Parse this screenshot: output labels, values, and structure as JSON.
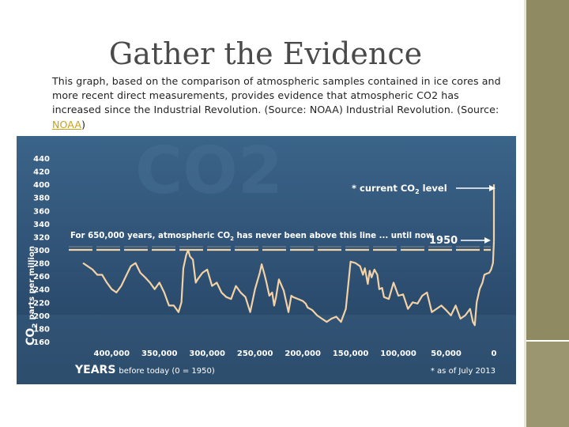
{
  "slide": {
    "title": "Gather the Evidence",
    "description_text": "This graph, based on the comparison of atmospheric samples contained in ice cores and more recent direct measurements, provides evidence that atmospheric CO2 has increased since the Industrial Revolution. (Source: NOAA) Industrial Revolution. (Source: ",
    "source_link": "NOAA",
    "description_end": ")"
  },
  "colors": {
    "chart_bg": "#2f5274",
    "line": "#f2d2a6",
    "text": "#ffffff",
    "sidebar": "#8f8a62"
  },
  "chart_data": {
    "type": "line",
    "watermark": "CO2",
    "ylabel_main": "CO",
    "ylabel_sub": "2",
    "ylabel_rest": "parts per million",
    "xlabel_main": "YEARS",
    "xlabel_rest": "before today (0 = 1950)",
    "ylim": [
      160,
      440
    ],
    "y_ticks": [
      160,
      180,
      200,
      220,
      240,
      260,
      280,
      300,
      320,
      340,
      360,
      380,
      400,
      420,
      440
    ],
    "xlim": [
      430000,
      0
    ],
    "x_ticks": [
      400000,
      350000,
      300000,
      250000,
      200000,
      150000,
      100000,
      50000,
      0
    ],
    "x_tick_labels": [
      "400,000",
      "350,000",
      "300,000",
      "250,000",
      "200,000",
      "150,000",
      "100,000",
      "50,000",
      "0"
    ],
    "threshold": 300,
    "annotation_line": "For 650,000 years, atmospheric CO",
    "annotation_line_sub": "2",
    "annotation_line_rest": " has never been above this line ... until now",
    "annotation_current": "* current CO",
    "annotation_current_sub": "2",
    "annotation_current_rest": " level",
    "annotation_1950": "1950",
    "footnote": "* as of July 2013",
    "series": [
      {
        "x": [
          430000,
          425000,
          420000,
          415000,
          410000,
          405000,
          400000,
          395000,
          390000,
          385000,
          380000,
          375000,
          370000,
          365000,
          360000,
          355000,
          350000,
          345000,
          340000,
          335000,
          330000,
          327000,
          325000,
          322000,
          320000,
          318000,
          315000,
          312000,
          310000,
          305000,
          300000,
          295000,
          290000,
          285000,
          280000,
          275000,
          270000,
          265000,
          260000,
          255000,
          250000,
          245000,
          243000,
          240000,
          238000,
          235000,
          232000,
          230000,
          228000,
          225000,
          220000,
          215000,
          212000,
          210000,
          205000,
          200000,
          197000,
          195000,
          190000,
          185000,
          180000,
          175000,
          170000,
          165000,
          160000,
          155000,
          150000,
          145000,
          140000,
          137000,
          135000,
          132000,
          130000,
          128000,
          125000,
          122000,
          120000,
          117000,
          115000,
          110000,
          105000,
          100000,
          95000,
          90000,
          85000,
          80000,
          75000,
          70000,
          65000,
          60000,
          55000,
          50000,
          45000,
          40000,
          35000,
          30000,
          25000,
          22000,
          20000,
          18000,
          15000,
          12000,
          10000,
          7000,
          5000,
          3000,
          1000,
          0
        ],
        "y": [
          280,
          275,
          270,
          262,
          262,
          250,
          240,
          235,
          245,
          260,
          275,
          280,
          265,
          258,
          250,
          240,
          250,
          235,
          215,
          215,
          205,
          220,
          272,
          292,
          300,
          290,
          285,
          250,
          255,
          265,
          270,
          245,
          250,
          235,
          228,
          225,
          245,
          235,
          228,
          205,
          240,
          265,
          278,
          262,
          250,
          230,
          235,
          215,
          228,
          255,
          238,
          205,
          230,
          228,
          225,
          222,
          218,
          212,
          208,
          200,
          195,
          190,
          195,
          198,
          190,
          210,
          282,
          280,
          275,
          262,
          272,
          248,
          268,
          258,
          270,
          262,
          240,
          242,
          228,
          225,
          250,
          230,
          232,
          210,
          220,
          218,
          230,
          235,
          205,
          210,
          215,
          208,
          200,
          215,
          195,
          200,
          210,
          190,
          185,
          220,
          240,
          250,
          262,
          264,
          265,
          270,
          280,
          313
        ]
      },
      {
        "x": [
          0,
          0
        ],
        "y": [
          313,
          400
        ]
      }
    ]
  }
}
